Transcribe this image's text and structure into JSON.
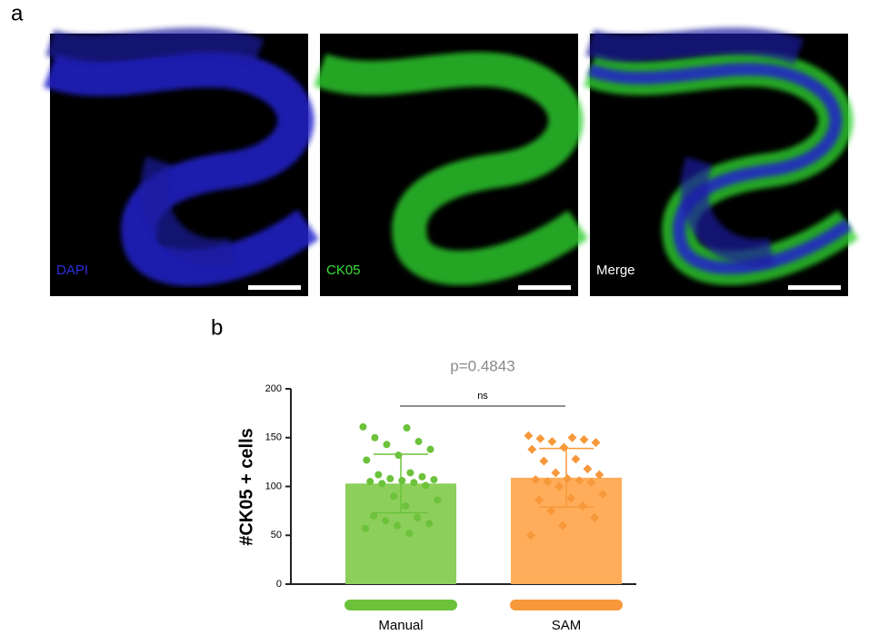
{
  "figure": {
    "panel_a": "a",
    "panel_b": "b",
    "images": [
      {
        "label": "DAPI",
        "color": "#2d2ddc"
      },
      {
        "label": "CK05",
        "color": "#39e039"
      },
      {
        "label": "Merge",
        "color": "#ffffff"
      }
    ]
  },
  "chart_data": {
    "type": "bar",
    "ylabel": "#CK05 + cells",
    "annotation": "p=0.4843",
    "significance": "ns",
    "categories": [
      "Manual",
      "SAM"
    ],
    "colors": [
      "#8ccf5a",
      "#ffad5a"
    ],
    "point_colors": [
      "#6cc23a",
      "#f7983a"
    ],
    "values": [
      103,
      109
    ],
    "errors": [
      30,
      30
    ],
    "points": [
      [
        161,
        160,
        150,
        146,
        143,
        138,
        132,
        127,
        114,
        112,
        110,
        108,
        107,
        106,
        105,
        104,
        103,
        101,
        90,
        86,
        80,
        70,
        68,
        65,
        62,
        60,
        57,
        52
      ],
      [
        152,
        150,
        149,
        148,
        146,
        145,
        140,
        138,
        128,
        126,
        118,
        114,
        112,
        108,
        107,
        106,
        105,
        104,
        100,
        92,
        88,
        86,
        80,
        75,
        68,
        60,
        50
      ]
    ],
    "ylim": [
      0,
      200
    ],
    "yticks": [
      0,
      50,
      100,
      150,
      200
    ]
  }
}
